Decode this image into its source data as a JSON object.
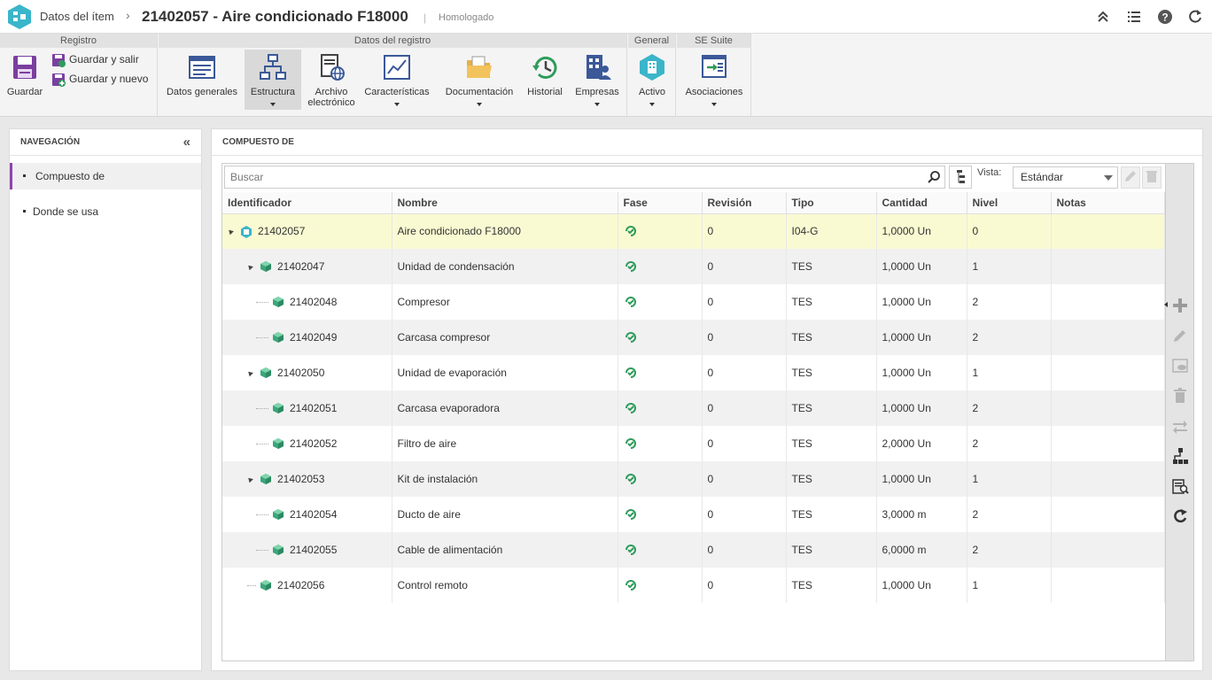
{
  "header": {
    "breadcrumb": "Datos del ítem",
    "title": "21402057 - Aire condicionado F18000",
    "status": "Homologado",
    "accent_color": "#3ab5c9"
  },
  "ribbon": {
    "groups": {
      "registro": "Registro",
      "datos_registro": "Datos del registro",
      "general": "General",
      "se_suite": "SE Suite"
    },
    "buttons": {
      "guardar": "Guardar",
      "guardar_salir": "Guardar y salir",
      "guardar_nuevo": "Guardar y nuevo",
      "datos_generales": "Datos generales",
      "estructura": "Estructura",
      "archivo_1": "Archivo",
      "archivo_2": "electrónico",
      "caracteristicas": "Características",
      "documentacion": "Documentación",
      "historial": "Historial",
      "empresas": "Empresas",
      "activo": "Activo",
      "asociaciones": "Asociaciones"
    }
  },
  "nav": {
    "title": "NAVEGACIÓN",
    "items": [
      "Compuesto de",
      "Donde se usa"
    ],
    "active_color": "#8e44ad"
  },
  "main": {
    "title": "COMPUESTO DE",
    "search_placeholder": "Buscar",
    "vista_label": "Vista:",
    "vista_value": "Estándar"
  },
  "table": {
    "columns": [
      "Identificador",
      "Nombre",
      "Fase",
      "Revisión",
      "Tipo",
      "Cantidad",
      "Nivel",
      "Notas"
    ],
    "rows": [
      {
        "id": "21402057",
        "name": "Aire condicionado F18000",
        "rev": "0",
        "type": "I04-G",
        "qty": "1,0000 Un",
        "level": "0",
        "depth": 0,
        "toggle": true,
        "root": true
      },
      {
        "id": "21402047",
        "name": "Unidad de condensación",
        "rev": "0",
        "type": "TES",
        "qty": "1,0000 Un",
        "level": "1",
        "depth": 1,
        "toggle": true
      },
      {
        "id": "21402048",
        "name": "Compresor",
        "rev": "0",
        "type": "TES",
        "qty": "1,0000 Un",
        "level": "2",
        "depth": 2
      },
      {
        "id": "21402049",
        "name": "Carcasa compresor",
        "rev": "0",
        "type": "TES",
        "qty": "1,0000 Un",
        "level": "2",
        "depth": 2
      },
      {
        "id": "21402050",
        "name": "Unidad de evaporación",
        "rev": "0",
        "type": "TES",
        "qty": "1,0000 Un",
        "level": "1",
        "depth": 1,
        "toggle": true
      },
      {
        "id": "21402051",
        "name": "Carcasa evaporadora",
        "rev": "0",
        "type": "TES",
        "qty": "1,0000 Un",
        "level": "2",
        "depth": 2
      },
      {
        "id": "21402052",
        "name": "Filtro de aire",
        "rev": "0",
        "type": "TES",
        "qty": "2,0000 Un",
        "level": "2",
        "depth": 2
      },
      {
        "id": "21402053",
        "name": "Kit de instalación",
        "rev": "0",
        "type": "TES",
        "qty": "1,0000 Un",
        "level": "1",
        "depth": 1,
        "toggle": true
      },
      {
        "id": "21402054",
        "name": "Ducto de aire",
        "rev": "0",
        "type": "TES",
        "qty": "3,0000 m",
        "level": "2",
        "depth": 2
      },
      {
        "id": "21402055",
        "name": "Cable de alimentación",
        "rev": "0",
        "type": "TES",
        "qty": "6,0000 m",
        "level": "2",
        "depth": 2
      },
      {
        "id": "21402056",
        "name": "Control remoto",
        "rev": "0",
        "type": "TES",
        "qty": "1,0000 Un",
        "level": "1",
        "depth": 1
      }
    ]
  },
  "icons": {
    "phase": "check-circle-icon",
    "item": "cube-icon",
    "side_tools": [
      "plus-icon",
      "pencil-icon",
      "view-icon",
      "trash-icon",
      "swap-icon",
      "hierarchy-icon",
      "report-icon",
      "refresh-icon"
    ]
  }
}
